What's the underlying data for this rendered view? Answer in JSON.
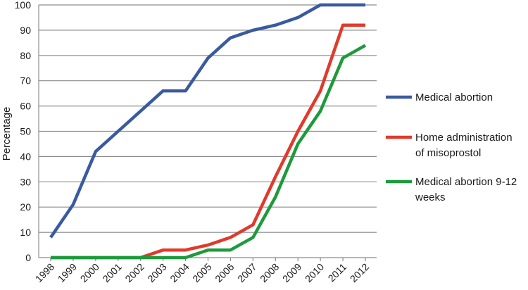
{
  "chart_data": {
    "type": "line",
    "ylabel": "Percentage",
    "ylim": [
      0,
      100
    ],
    "yticks": [
      "0",
      "10",
      "20",
      "30",
      "40",
      "50",
      "60",
      "70",
      "80",
      "90",
      "100"
    ],
    "categories": [
      "1998",
      "1999",
      "2000",
      "2001",
      "2002",
      "2003",
      "2004",
      "2005",
      "2006",
      "2007",
      "2008",
      "2009",
      "2010",
      "2011",
      "2012"
    ],
    "grid": "horizontal",
    "legend_position": "right",
    "series": [
      {
        "name": "Medical abortion",
        "legend_lines": [
          "Medical abortion"
        ],
        "color": "#3a5aa0",
        "values": [
          8,
          21,
          42,
          50,
          58,
          66,
          66,
          79,
          87,
          90,
          92,
          95,
          100,
          100,
          100
        ]
      },
      {
        "name": "Home administration of misoprostol",
        "legend_lines": [
          "Home administration",
          "of misoprostol"
        ],
        "color": "#e03a2b",
        "values": [
          0,
          0,
          0,
          0,
          0,
          3,
          3,
          5,
          8,
          13,
          32,
          50,
          66,
          92,
          92
        ]
      },
      {
        "name": "Medical abortion 9-12 weeks",
        "legend_lines": [
          "Medical abortion 9-12",
          "weeks"
        ],
        "color": "#1e9a3c",
        "values": [
          0,
          0,
          0,
          0,
          0,
          0,
          0,
          3,
          3,
          8,
          24,
          45,
          58,
          79,
          84
        ]
      }
    ]
  }
}
